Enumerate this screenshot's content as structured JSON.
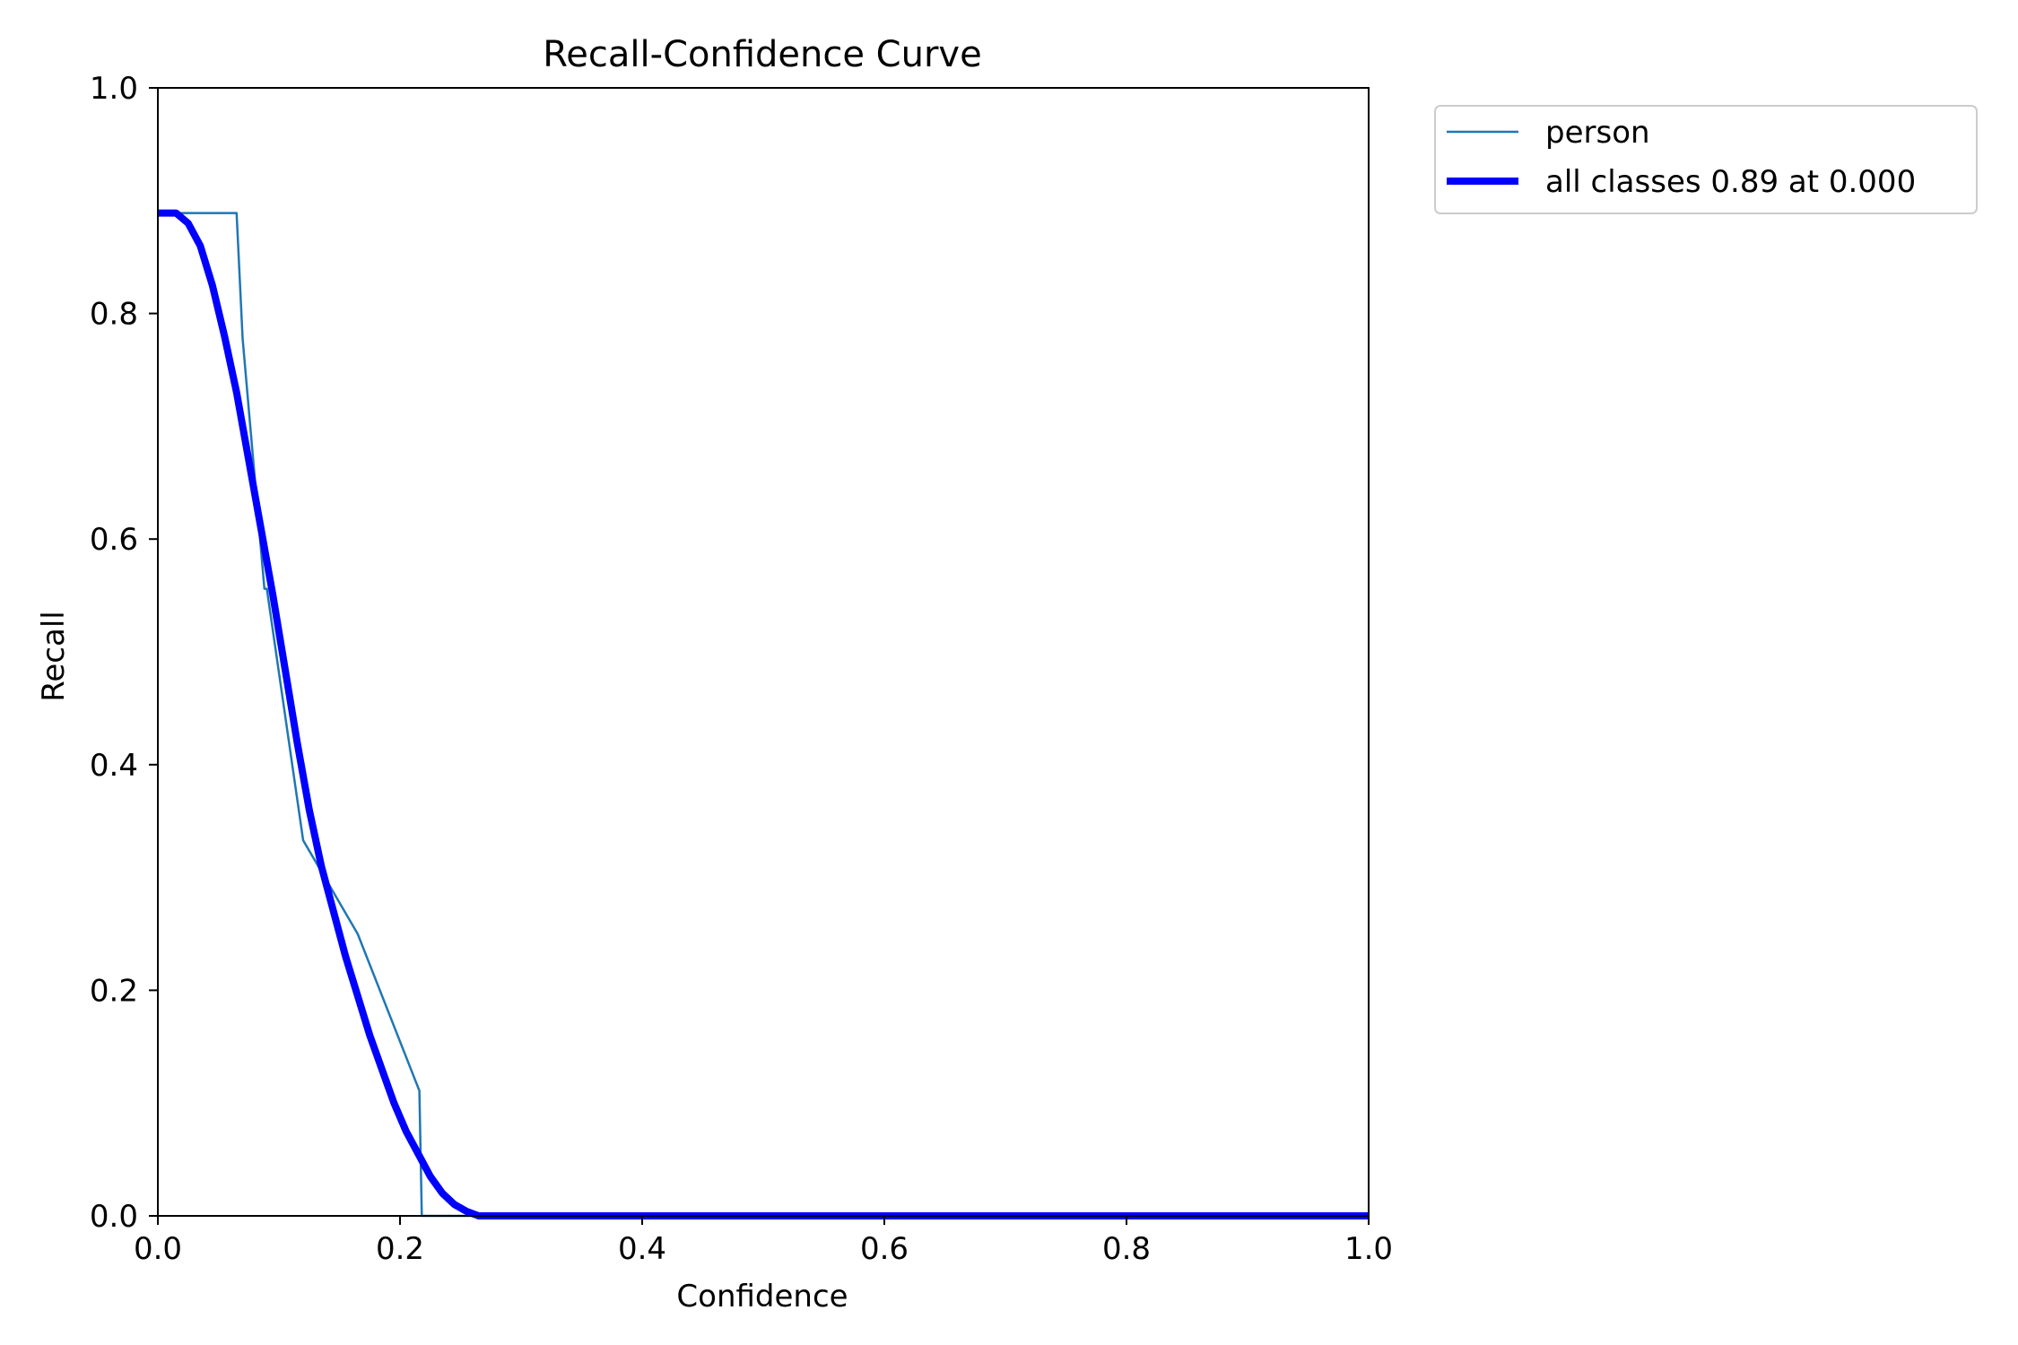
{
  "chart_data": {
    "type": "line",
    "title": "Recall-Confidence Curve",
    "xlabel": "Confidence",
    "ylabel": "Recall",
    "xlim": [
      0,
      1
    ],
    "ylim": [
      0,
      1
    ],
    "x_ticks": [
      "0.0",
      "0.2",
      "0.4",
      "0.6",
      "0.8",
      "1.0"
    ],
    "y_ticks": [
      "0.0",
      "0.2",
      "0.4",
      "0.6",
      "0.8",
      "1.0"
    ],
    "grid": false,
    "legend_placement": "outside-top-right",
    "series": [
      {
        "name": "person",
        "color": "#1f77b4",
        "style": "thin",
        "x": [
          0.0,
          0.065,
          0.065,
          0.07,
          0.088,
          0.09,
          0.12,
          0.12,
          0.165,
          0.216,
          0.216,
          0.218,
          0.218,
          1.0
        ],
        "y": [
          0.889,
          0.889,
          0.889,
          0.778,
          0.556,
          0.556,
          0.333,
          0.333,
          0.25,
          0.111,
          0.111,
          0.0,
          0.0,
          0.0
        ]
      },
      {
        "name": "all classes 0.89 at 0.000",
        "color": "#0000ff",
        "style": "thick",
        "x": [
          0.0,
          0.015,
          0.025,
          0.035,
          0.045,
          0.055,
          0.065,
          0.075,
          0.085,
          0.095,
          0.105,
          0.115,
          0.125,
          0.135,
          0.145,
          0.155,
          0.165,
          0.175,
          0.185,
          0.195,
          0.205,
          0.215,
          0.225,
          0.235,
          0.245,
          0.255,
          0.265,
          0.3,
          0.4,
          0.5,
          0.6,
          0.7,
          0.8,
          0.9,
          1.0
        ],
        "y": [
          0.889,
          0.889,
          0.88,
          0.86,
          0.825,
          0.78,
          0.73,
          0.67,
          0.61,
          0.55,
          0.485,
          0.42,
          0.36,
          0.31,
          0.27,
          0.23,
          0.195,
          0.16,
          0.13,
          0.1,
          0.075,
          0.055,
          0.035,
          0.02,
          0.01,
          0.004,
          0.0,
          0.0,
          0.0,
          0.0,
          0.0,
          0.0,
          0.0,
          0.0,
          0.0
        ]
      }
    ]
  }
}
